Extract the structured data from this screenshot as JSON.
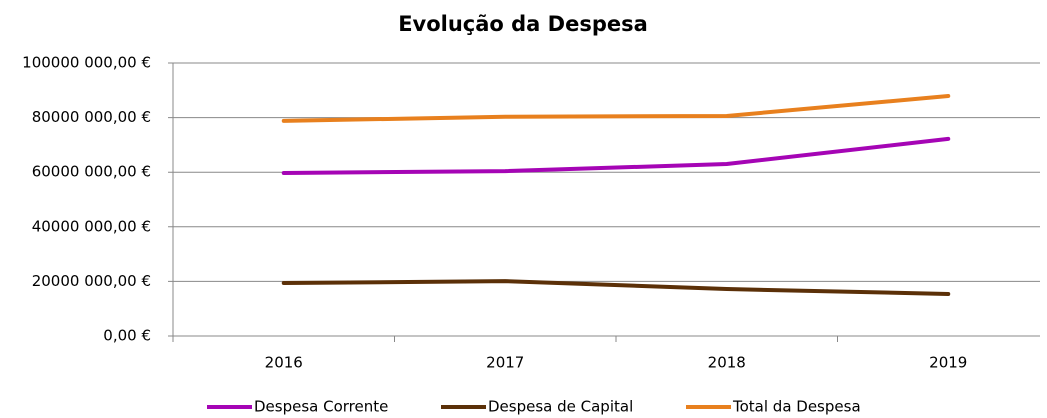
{
  "chart_data": {
    "type": "line",
    "title": "Evolução da Despesa",
    "categories": [
      "2016",
      "2017",
      "2018",
      "2019"
    ],
    "series": [
      {
        "name": "Despesa Corrente",
        "color": "#a505b5",
        "values": [
          59700000,
          60400000,
          63000000,
          72200000
        ]
      },
      {
        "name": "Despesa de Capital",
        "color": "#5b3008",
        "values": [
          19400000,
          20100000,
          17200000,
          15400000
        ]
      },
      {
        "name": "Total da Despesa",
        "color": "#e8801e",
        "values": [
          78800000,
          80300000,
          80600000,
          87900000
        ]
      }
    ],
    "ylim": [
      0,
      100000000
    ],
    "yticks": [
      {
        "value": 0,
        "label": "0,00 €"
      },
      {
        "value": 20000000,
        "label": "20000 000,00 €"
      },
      {
        "value": 40000000,
        "label": "40000 000,00 €"
      },
      {
        "value": 60000000,
        "label": "60000 000,00 €"
      },
      {
        "value": 80000000,
        "label": "80000 000,00 €"
      },
      {
        "value": 100000000,
        "label": "100000 000,00 €"
      }
    ],
    "grid": true,
    "legend": "bottom"
  }
}
